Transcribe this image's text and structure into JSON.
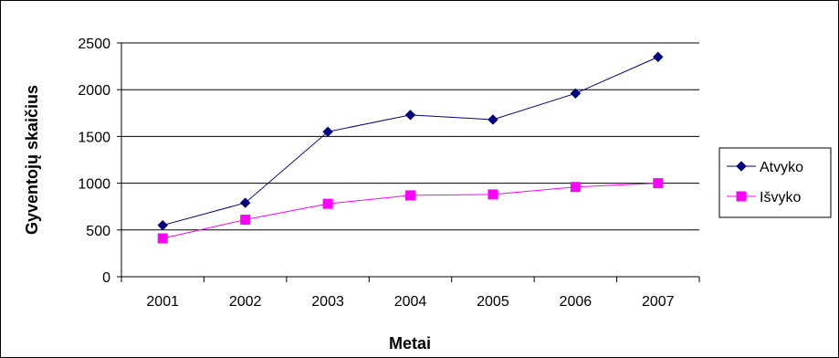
{
  "chart_data": {
    "type": "line",
    "title": "",
    "xlabel": "Metai",
    "ylabel": "Gyventojų skaičius",
    "categories": [
      "2001",
      "2002",
      "2003",
      "2004",
      "2005",
      "2006",
      "2007"
    ],
    "ylim": [
      0,
      2500
    ],
    "yticks": [
      "0",
      "500",
      "1000",
      "1500",
      "2000",
      "2500"
    ],
    "grid": true,
    "legend_position": "right",
    "series": [
      {
        "name": "Atvyko",
        "values": [
          550,
          790,
          1550,
          1730,
          1680,
          1960,
          2350
        ],
        "color": "#000080",
        "marker": "diamond"
      },
      {
        "name": "Išvyko",
        "values": [
          410,
          610,
          780,
          870,
          880,
          960,
          1000
        ],
        "color": "#ff00ff",
        "marker": "square"
      }
    ]
  }
}
